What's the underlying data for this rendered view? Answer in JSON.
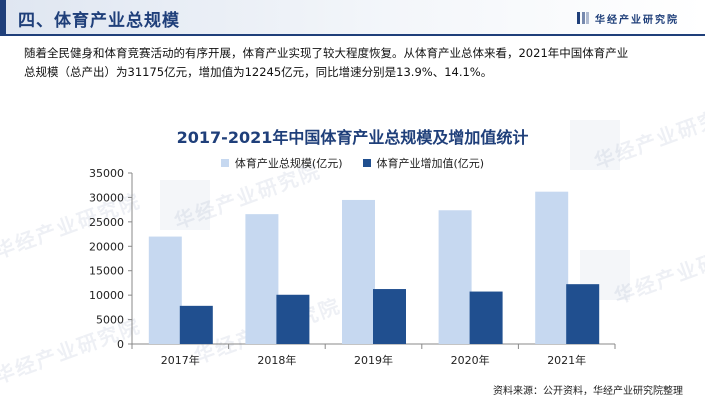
{
  "header": {
    "title": "四、体育产业总规模",
    "brand": "华经产业研究院"
  },
  "intro_text": "随着全民健身和体育竞赛活动的有序开展，体育产业实现了较大程度恢复。从体育产业总体来看，2021年中国体育产业\n总规模（总产出）为31175亿元，增加值为12245亿元，同比增速分别是13.9%、14.1%。",
  "watermark_text": "华经产业研究院",
  "chart_data": {
    "type": "bar",
    "title": "2017-2021年中国体育产业总规模及增加值统计",
    "categories": [
      "2017年",
      "2018年",
      "2019年",
      "2020年",
      "2021年"
    ],
    "series": [
      {
        "name": "体育产业总规模(亿元)",
        "values": [
          21988,
          26579,
          29483,
          27372,
          31175
        ],
        "color": "#c6d8f0"
      },
      {
        "name": "体育产业增加值(亿元)",
        "values": [
          7811,
          10078,
          11248,
          10735,
          12245
        ],
        "color": "#204f8f"
      }
    ],
    "ylim": [
      0,
      35000
    ],
    "yticks": [
      "0",
      "5000",
      "10000",
      "15000",
      "20000",
      "25000",
      "30000",
      "35000"
    ],
    "grid": false,
    "legend": "top-center"
  },
  "source": "资料来源：公开资料，华经产业研究院整理"
}
